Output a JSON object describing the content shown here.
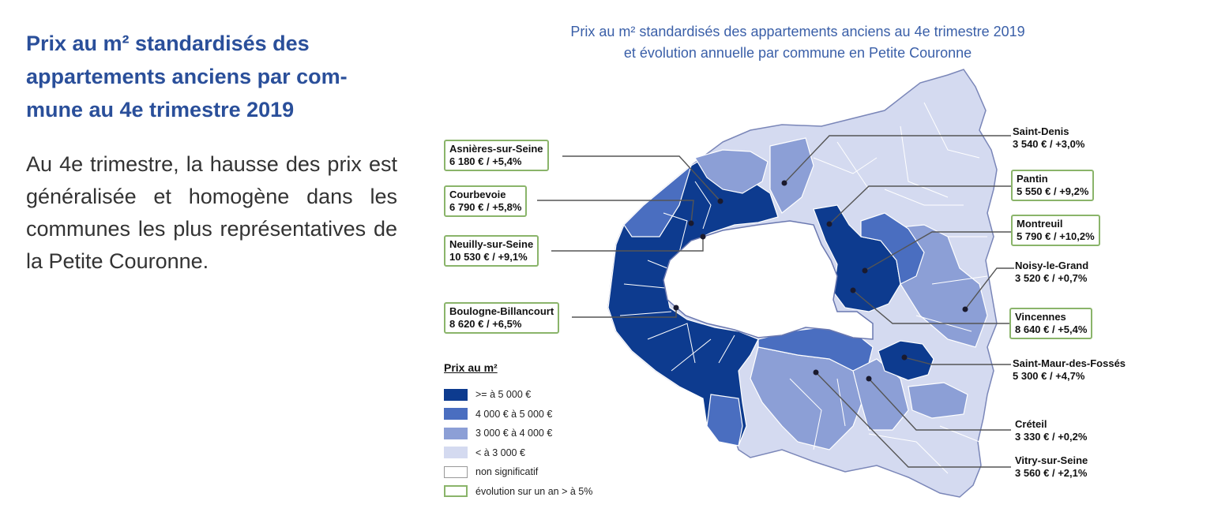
{
  "heading": {
    "line1": "Prix au m² standardisés des",
    "line2": "appartements anciens par com-",
    "line3": "mune au 4e trimestre 2019"
  },
  "body": "Au 4e trimestre, la hausse des prix est généralisée et homogène dans les communes les plus représentatives de la Petite Couronne.",
  "map": {
    "title_line1": "Prix au m² standardisés des appartements anciens au 4e trimestre 2019",
    "title_line2": "et évolution annuelle par commune en Petite Couronne",
    "colors": {
      "dark": "#0d3b8f",
      "medium": "#4a6ec0",
      "light": "#8c9fd6",
      "pale": "#d4daf0",
      "callout_border": "#8ab46a"
    },
    "callouts": [
      {
        "name": "Asnières-sur-Seine",
        "value": "6 180 € / +5,4%",
        "boxed": true
      },
      {
        "name": "Courbevoie",
        "value": "6 790 € / +5,8%",
        "boxed": true
      },
      {
        "name": "Neuilly-sur-Seine",
        "value": "10 530 € / +9,1%",
        "boxed": true
      },
      {
        "name": "Boulogne-Billancourt",
        "value": "8 620 € / +6,5%",
        "boxed": true
      },
      {
        "name": "Saint-Denis",
        "value": "3 540 € / +3,0%",
        "boxed": false
      },
      {
        "name": "Pantin",
        "value": "5 550 € / +9,2%",
        "boxed": true
      },
      {
        "name": "Montreuil",
        "value": "5 790 € / +10,2%",
        "boxed": true
      },
      {
        "name": "Noisy-le-Grand",
        "value": "3 520 € / +0,7%",
        "boxed": false
      },
      {
        "name": "Vincennes",
        "value": "8 640 € / +5,4%",
        "boxed": true
      },
      {
        "name": "Saint-Maur-des-Fossés",
        "value": "5 300 € / +4,7%",
        "boxed": false
      },
      {
        "name": "Créteil",
        "value": "3 330 € / +0,2%",
        "boxed": false
      },
      {
        "name": "Vitry-sur-Seine",
        "value": "3 560 € / +2,1%",
        "boxed": false
      }
    ],
    "legend": {
      "title": "Prix au m²",
      "items": [
        {
          "label": ">= à 5 000 €",
          "color": "#0d3b8f"
        },
        {
          "label": "4 000 € à 5 000 €",
          "color": "#4a6ec0"
        },
        {
          "label": "3 000 € à 4 000 €",
          "color": "#8c9fd6"
        },
        {
          "label": "< à 3 000 €",
          "color": "#d4daf0"
        },
        {
          "label": "non significatif",
          "color": "#ffffff"
        },
        {
          "label": "évolution sur un an > à 5%",
          "color": "#ffffff",
          "border": "#8ab46a"
        }
      ]
    }
  }
}
